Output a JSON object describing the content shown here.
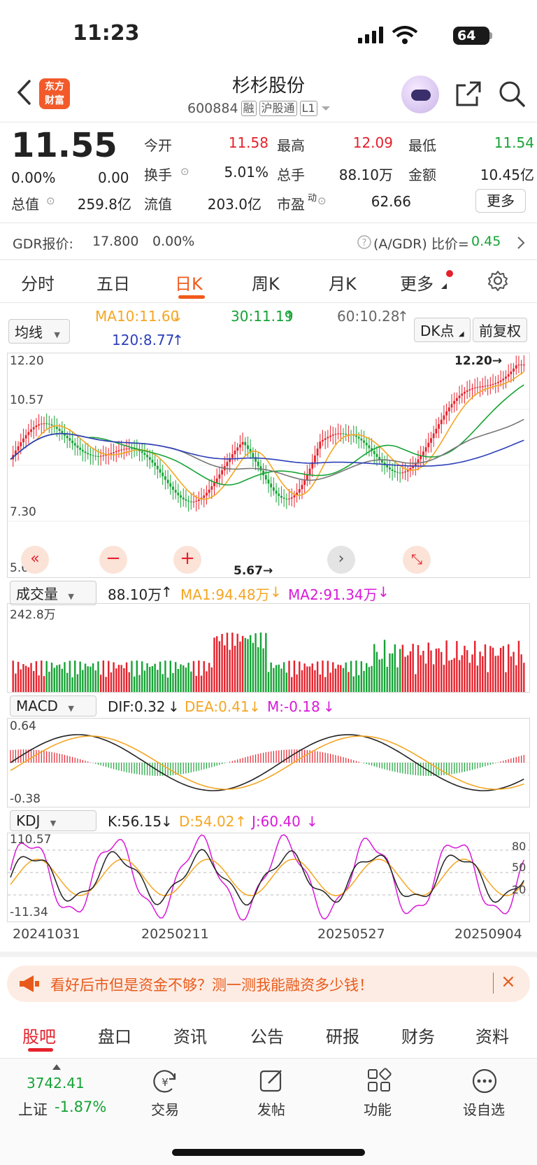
{
  "status": {
    "time": "11:23",
    "battery": "64"
  },
  "header": {
    "logo_text": "东方财富",
    "stock_name": "杉杉股份",
    "code": "600884",
    "tags": [
      "融",
      "沪股通",
      "L1"
    ]
  },
  "quote": {
    "price": "11.55",
    "change_pct": "0.00%",
    "change": "0.00",
    "fields": [
      {
        "label": "今开",
        "value": "11.58",
        "color": "#e5212c"
      },
      {
        "label": "最高",
        "value": "12.09",
        "color": "#e5212c"
      },
      {
        "label": "最低",
        "value": "11.54",
        "color": "#16a335"
      },
      {
        "label": "换手",
        "value": "5.01%",
        "color": "#222222"
      },
      {
        "label": "总手",
        "value": "88.10万",
        "color": "#222222"
      },
      {
        "label": "金额",
        "value": "10.45亿",
        "color": "#222222"
      },
      {
        "label": "总值",
        "value": "259.8亿",
        "color": "#222222"
      },
      {
        "label": "流值",
        "value": "203.0亿",
        "color": "#222222"
      },
      {
        "label": "市盈",
        "value": "62.66",
        "color": "#222222"
      }
    ],
    "more": "更多",
    "pe_sup": "动"
  },
  "gdr": {
    "label": "GDR报价:",
    "price": "17.800",
    "pct": "0.00%",
    "ratio_label": "(A/GDR) 比价=",
    "ratio": "0.45"
  },
  "tabs": [
    "分时",
    "五日",
    "日K",
    "周K",
    "月K",
    "更多"
  ],
  "ma_bar": {
    "indicator": "均线",
    "ma10": "MA10:11.60",
    "ma30": "30:11.19",
    "ma60": "60:10.28",
    "ma120": "120:8.77",
    "dk": "DK点",
    "adj": "前复权"
  },
  "kline": {
    "y_labels": [
      "12.20",
      "10.57",
      "7.30",
      "5.67"
    ],
    "high_mark": "12.20",
    "low_mark": "5.67"
  },
  "volume": {
    "indicator": "成交量",
    "value": "88.10万",
    "ma1": "MA1:94.48万",
    "ma2": "MA2:91.34万",
    "max_label": "242.8万"
  },
  "macd": {
    "indicator": "MACD",
    "dif": "DIF:0.32",
    "dea": "DEA:0.41",
    "m": "M:-0.18",
    "top": "0.64",
    "bottom": "-0.38"
  },
  "kdj": {
    "indicator": "KDJ",
    "k": "K:56.15",
    "d": "D:54.02",
    "j": "J:60.40",
    "top": "110.57",
    "bottom": "-11.34",
    "levels": [
      "80",
      "50",
      "20"
    ]
  },
  "dates": [
    "20241031",
    "20250211",
    "20250527",
    "20250904"
  ],
  "banner": {
    "text": "看好后市但是资金不够？测一测我能融资多少钱！"
  },
  "bottom_tabs": [
    "股吧",
    "盘口",
    "资讯",
    "公告",
    "研报",
    "财务",
    "资料"
  ],
  "nav": {
    "index_value": "3742.41",
    "index_name": "上证",
    "index_pct": "-1.87%",
    "items": [
      "交易",
      "发帖",
      "功能",
      "设自选"
    ]
  }
}
